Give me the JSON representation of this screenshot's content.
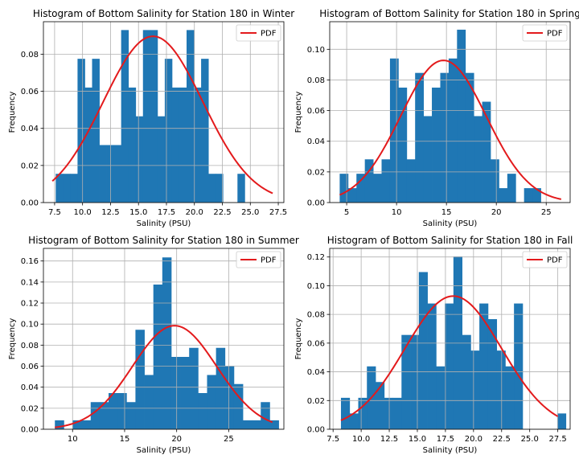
{
  "colors": {
    "bar": "#1f77b4",
    "pdf": "#e31a1c",
    "grid": "#b0b0b0",
    "axes": "#000000"
  },
  "chart_data": [
    {
      "type": "bar",
      "title": "Histogram of Bottom Salinity for Station 180 in Winter",
      "xlabel": "Salinity (PSU)",
      "ylabel": "Frequency",
      "xlim": [
        6.5,
        28.0
      ],
      "ylim": [
        0,
        0.0975
      ],
      "xticks": [
        7.5,
        10.0,
        12.5,
        15.0,
        17.5,
        20.0,
        22.5,
        25.0,
        27.5
      ],
      "xtick_labels": [
        "7.5",
        "10.0",
        "12.5",
        "15.0",
        "17.5",
        "20.0",
        "22.5",
        "25.0",
        "27.5"
      ],
      "yticks": [
        0.0,
        0.02,
        0.04,
        0.06,
        0.08
      ],
      "ytick_labels": [
        "0.00",
        "0.02",
        "0.04",
        "0.06",
        "0.08"
      ],
      "grid": true,
      "legend": {
        "position": "top-right",
        "entries": [
          "PDF"
        ]
      },
      "bins": {
        "start": 7.6,
        "width": 0.65
      },
      "values": [
        0.0155,
        0.0155,
        0.0155,
        0.0775,
        0.062,
        0.0775,
        0.031,
        0.031,
        0.031,
        0.093,
        0.062,
        0.0465,
        0.093,
        0.093,
        0.0465,
        0.0775,
        0.062,
        0.062,
        0.093,
        0.062,
        0.0775,
        0.0155,
        0.0155,
        0.0,
        0.0,
        0.0155,
        0.0
      ],
      "pdf": {
        "mean": 16.3,
        "std": 4.45,
        "x_range": [
          7.3,
          27.0
        ]
      }
    },
    {
      "type": "bar",
      "title": "Histogram of Bottom Salinity for Station 180 in Spring",
      "xlabel": "Salinity (PSU)",
      "ylabel": "Frequency",
      "xlim": [
        3.3,
        27.4
      ],
      "ylim": [
        0,
        0.118
      ],
      "xticks": [
        5,
        10,
        15,
        20,
        25
      ],
      "xtick_labels": [
        "5",
        "10",
        "15",
        "20",
        "25"
      ],
      "yticks": [
        0.0,
        0.02,
        0.04,
        0.06,
        0.08,
        0.1
      ],
      "ytick_labels": [
        "0.00",
        "0.02",
        "0.04",
        "0.06",
        "0.08",
        "0.10"
      ],
      "grid": true,
      "legend": {
        "position": "top-right",
        "entries": [
          "PDF"
        ]
      },
      "bins": {
        "start": 4.3,
        "width": 0.84
      },
      "values": [
        0.0188,
        0.0094,
        0.0188,
        0.0282,
        0.0188,
        0.0282,
        0.094,
        0.075,
        0.0282,
        0.0846,
        0.0564,
        0.075,
        0.0846,
        0.094,
        0.1128,
        0.0846,
        0.0564,
        0.0658,
        0.0282,
        0.0094,
        0.0188,
        0.0,
        0.0094,
        0.0094,
        0.0
      ],
      "pdf": {
        "mean": 14.7,
        "std": 4.3,
        "x_range": [
          4.3,
          26.5
        ]
      }
    },
    {
      "type": "bar",
      "title": "Histogram of Bottom Salinity for Station 180 in Summer",
      "xlabel": "Salinity (PSU)",
      "ylabel": "Frequency",
      "xlim": [
        7.2,
        30.3
      ],
      "ylim": [
        0,
        0.172
      ],
      "xticks": [
        10,
        15,
        20,
        25
      ],
      "xtick_labels": [
        "10",
        "15",
        "20",
        "25"
      ],
      "yticks": [
        0.0,
        0.02,
        0.04,
        0.06,
        0.08,
        0.1,
        0.12,
        0.14,
        0.16
      ],
      "ytick_labels": [
        "0.00",
        "0.02",
        "0.04",
        "0.06",
        "0.08",
        "0.10",
        "0.12",
        "0.14",
        "0.16"
      ],
      "grid": true,
      "legend": {
        "position": "top-right",
        "entries": [
          "PDF"
        ]
      },
      "bins": {
        "start": 8.3,
        "width": 0.86
      },
      "values": [
        0.0085,
        0.0,
        0.0085,
        0.0085,
        0.0258,
        0.0258,
        0.0344,
        0.0344,
        0.0258,
        0.0946,
        0.0516,
        0.1376,
        0.1634,
        0.0688,
        0.0688,
        0.0774,
        0.0344,
        0.0516,
        0.0774,
        0.0602,
        0.043,
        0.0085,
        0.0085,
        0.0258,
        0.0085
      ],
      "pdf": {
        "mean": 19.8,
        "std": 4.05,
        "x_range": [
          8.3,
          29.2
        ]
      }
    },
    {
      "type": "bar",
      "title": "Histogram of Bottom Salinity for Station 180 in Fall",
      "xlabel": "Salinity (PSU)",
      "ylabel": "Frequency",
      "xlim": [
        7.2,
        28.6
      ],
      "ylim": [
        0,
        0.126
      ],
      "xticks": [
        7.5,
        10.0,
        12.5,
        15.0,
        17.5,
        20.0,
        22.5,
        25.0,
        27.5
      ],
      "xtick_labels": [
        "7.5",
        "10.0",
        "12.5",
        "15.0",
        "17.5",
        "20.0",
        "22.5",
        "25.0",
        "27.5"
      ],
      "yticks": [
        0.0,
        0.02,
        0.04,
        0.06,
        0.08,
        0.1,
        0.12
      ],
      "ytick_labels": [
        "0.00",
        "0.02",
        "0.04",
        "0.06",
        "0.08",
        "0.10",
        "0.12"
      ],
      "grid": true,
      "legend": {
        "position": "top-right",
        "entries": [
          "PDF"
        ]
      },
      "bins": {
        "start": 8.2,
        "width": 0.77
      },
      "values": [
        0.0219,
        0.011,
        0.0219,
        0.0438,
        0.0329,
        0.0219,
        0.0219,
        0.0657,
        0.0657,
        0.1095,
        0.0876,
        0.0438,
        0.0876,
        0.1204,
        0.0657,
        0.0548,
        0.0876,
        0.0767,
        0.0548,
        0.0438,
        0.0876,
        0.0,
        0.0,
        0.0,
        0.0,
        0.011
      ],
      "pdf": {
        "mean": 18.2,
        "std": 4.3,
        "x_range": [
          8.2,
          27.5
        ]
      }
    }
  ]
}
